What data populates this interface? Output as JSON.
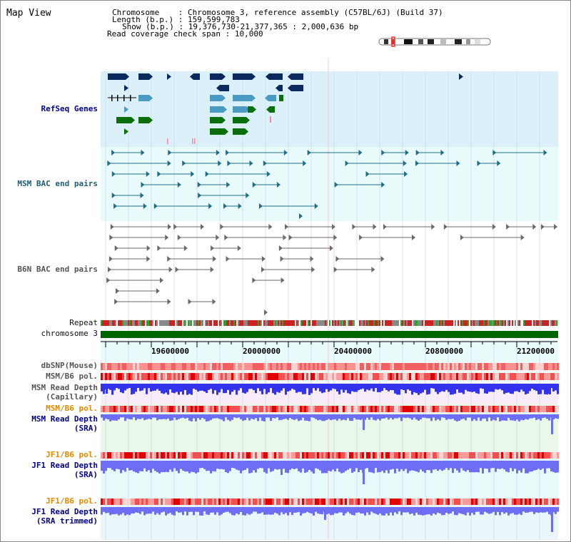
{
  "page": {
    "title": "Map View"
  },
  "header": {
    "rows": [
      {
        "label": "Chromosome",
        "value": "Chromosome 3, reference assembly (C57BL/6J) (Build 37)"
      },
      {
        "label": "Length (b.p.)",
        "value": "159,599,783"
      },
      {
        "label": "Show (b.p.)",
        "value": "19,376,730-21,377,365 : 2,000,636 bp"
      },
      {
        "label": "Read coverage check span",
        "value": "10,000"
      }
    ]
  },
  "tracks": {
    "refseq": "RefSeq Genes",
    "msm_bac": "MSM BAC end pairs",
    "b6n_bac": "B6N BAC end pairs",
    "repeat": "Repeat",
    "chromosome": "chromosome 3",
    "dbsnp": "dbSNP(Mouse)",
    "msm_pol": "MSM/B6 pol.",
    "msm_depth_cap": "MSM Read Depth",
    "msm_depth_cap_sub": "(Capillary)",
    "msm_pol2": "MSM/B6 pol.",
    "msm_depth_sra": "MSM Read Depth",
    "msm_depth_sra_sub": "(SRA)",
    "jf1_pol": "JF1/B6 pol.",
    "jf1_depth_sra": "JF1 Read Depth",
    "jf1_depth_sra_sub": "(SRA)",
    "jf1_pol2": "JF1/B6 pol.",
    "jf1_depth_trim": "JF1 Read Depth",
    "jf1_depth_trim_sub": "(SRA trimmed)"
  },
  "ruler": {
    "ticks": [
      "19600000",
      "20000000",
      "20400000",
      "20800000",
      "21200000"
    ]
  },
  "colors": {
    "refseq_bg": "#dcf0fa",
    "msm_bg": "#e8fafa",
    "navy_gene": "#0a2a5e",
    "light_gene": "#4a9ac4",
    "green_gene": "#0a6e0a",
    "chrom_green": "#006400",
    "depth_blue": "#3333ee",
    "depth_light": "#6e6ef5",
    "label_orange": "#e08a00",
    "label_navy": "#00008b",
    "label_teal": "#1c5f76"
  }
}
